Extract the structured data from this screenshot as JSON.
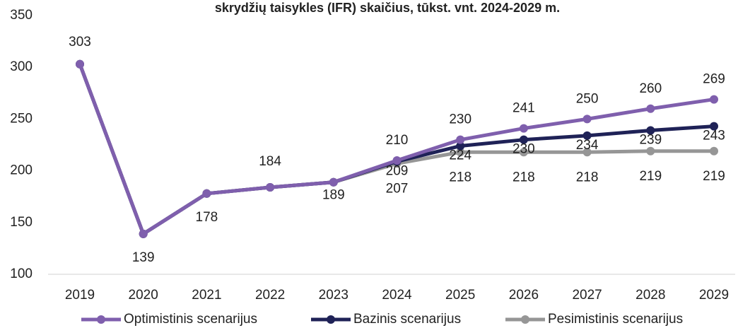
{
  "chart_data": {
    "type": "line",
    "title": "skrydžių taisykles (IFR) skaičius, tūkst. vnt. 2024-2029 m.",
    "categories": [
      "2019",
      "2020",
      "2021",
      "2022",
      "2023",
      "2024",
      "2025",
      "2026",
      "2027",
      "2028",
      "2029"
    ],
    "series": [
      {
        "name": "Optimistinis scenarijus",
        "color": "#7f5fad",
        "values": [
          303,
          139,
          178,
          184,
          189,
          210,
          230,
          241,
          250,
          260,
          269
        ]
      },
      {
        "name": "Bazinis scenarijus",
        "color": "#1f2257",
        "values": [
          303,
          139,
          178,
          184,
          189,
          209,
          224,
          230,
          234,
          239,
          243
        ]
      },
      {
        "name": "Pesimistinis scenarijus",
        "color": "#969696",
        "values": [
          303,
          139,
          178,
          184,
          189,
          207,
          218,
          218,
          218,
          219,
          219
        ]
      }
    ],
    "ylim": [
      100,
      350
    ],
    "yticks": [
      100,
      150,
      200,
      250,
      300,
      350
    ],
    "grid": false,
    "legend": "bottom"
  }
}
